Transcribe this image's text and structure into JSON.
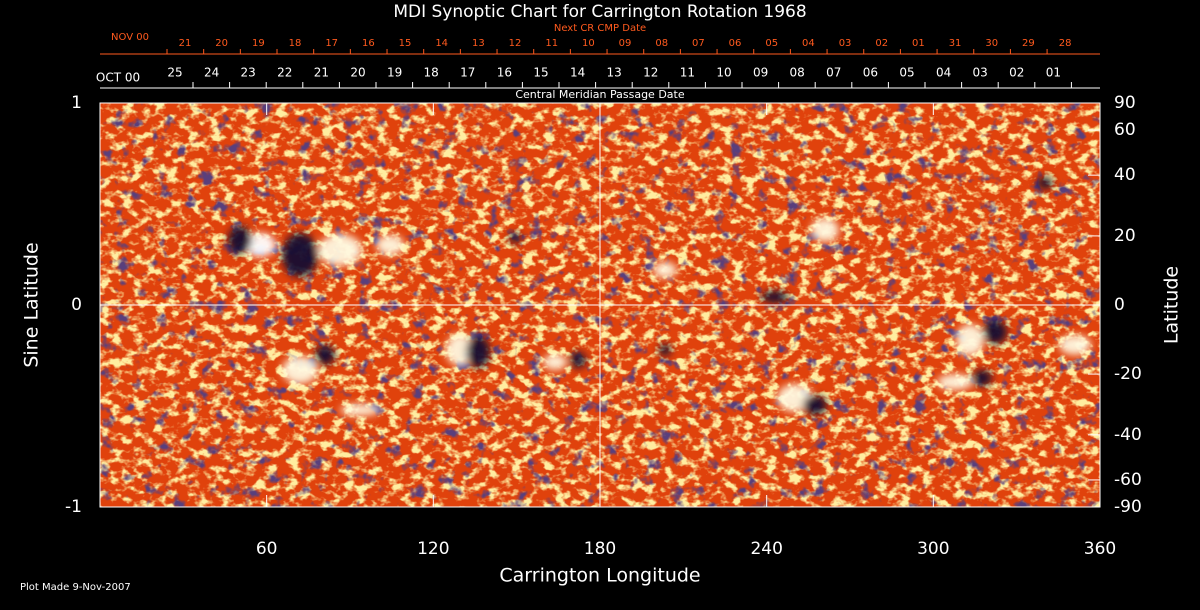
{
  "chart_data": {
    "type": "synoptic",
    "title": "MDI Synoptic Chart for Carrington Rotation 1968",
    "xlabel": "Carrington Longitude",
    "ylabel": "Sine Latitude",
    "y2label": "Latitude",
    "xlim": [
      0,
      360
    ],
    "xticks": [
      60,
      120,
      180,
      240,
      300,
      360
    ],
    "ylim": [
      -1,
      1
    ],
    "yticks": [
      -1,
      0,
      1
    ],
    "y2_scale": "sine",
    "y2ticks": [
      90,
      60,
      40,
      20,
      0,
      -20,
      -40,
      -60,
      -90
    ],
    "next_cr_cmp": {
      "label": "Next CR CMP Date",
      "month": "NOV 00",
      "days": [
        "21",
        "20",
        "19",
        "18",
        "17",
        "16",
        "15",
        "14",
        "13",
        "12",
        "11",
        "10",
        "09",
        "08",
        "07",
        "06",
        "05",
        "04",
        "03",
        "02",
        "01",
        "31",
        "30",
        "29",
        "28"
      ]
    },
    "cmp": {
      "label": "Central Meridian Passage Date",
      "month": "OCT 00",
      "days": [
        "25",
        "24",
        "23",
        "22",
        "21",
        "20",
        "19",
        "18",
        "17",
        "16",
        "15",
        "14",
        "13",
        "12",
        "11",
        "10",
        "09",
        "08",
        "07",
        "06",
        "05",
        "04",
        "03",
        "02",
        "01"
      ]
    },
    "footnote": "Plot Made  9-Nov-2007"
  }
}
